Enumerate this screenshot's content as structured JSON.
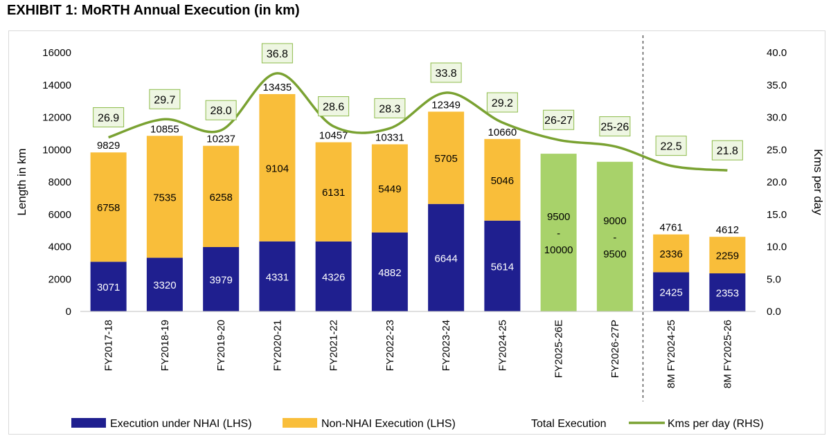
{
  "title": "EXHIBIT 1: MoRTH Annual Execution (in km)",
  "chart_data": {
    "type": "bar",
    "subtype": "stacked bar with line on secondary axis",
    "categories": [
      "FY2017-18",
      "FY2018-19",
      "FY2019-20",
      "FY2020-21",
      "FY2021-22",
      "FY2022-23",
      "FY2023-24",
      "FY2024-25",
      "FY2025-26E",
      "FY2026-27P",
      "8M FY2024-25",
      "8M FY2025-26"
    ],
    "series": [
      {
        "name": "Execution under NHAI (LHS)",
        "color": "#1f1f8f",
        "values": [
          3071,
          3320,
          3979,
          4331,
          4326,
          4882,
          6644,
          5614,
          null,
          null,
          2425,
          2353
        ],
        "labels": [
          "3071",
          "3320",
          "3979",
          "4331",
          "4326",
          "4882",
          "6644",
          "5614",
          "",
          "",
          "2425",
          "2353"
        ]
      },
      {
        "name": "Non-NHAI Execution (LHS)",
        "color": "#f9be3a",
        "values": [
          6758,
          7535,
          6258,
          9104,
          6131,
          5449,
          5705,
          5046,
          null,
          null,
          2336,
          2259
        ],
        "labels": [
          "6758",
          "7535",
          "6258",
          "9104",
          "6131",
          "5449",
          "5705",
          "5046",
          "",
          "",
          "2336",
          "2259"
        ]
      },
      {
        "name": "Total Execution",
        "color": "#a8d26a",
        "values": [
          9829,
          10855,
          10237,
          13435,
          10457,
          10331,
          12349,
          10660,
          9750,
          9250,
          4761,
          4612
        ],
        "labels": [
          "9829",
          "10855",
          "10237",
          "13435",
          "10457",
          "10331",
          "12349",
          "10660",
          "",
          "",
          "4761",
          "4612"
        ],
        "range_labels": [
          "",
          "",
          "",
          "",
          "",
          "",
          "",
          "",
          [
            "9500",
            "-",
            "10000"
          ],
          [
            "9000",
            "-",
            "9500"
          ],
          "",
          ""
        ]
      },
      {
        "name": "Kms per day (RHS)",
        "color": "#7aa232",
        "axis": "right",
        "values": [
          26.9,
          29.7,
          28.0,
          36.8,
          28.6,
          28.3,
          33.8,
          29.2,
          26.5,
          25.5,
          22.5,
          21.8
        ],
        "labels": [
          "26.9",
          "29.7",
          "28.0",
          "36.8",
          "28.6",
          "28.3",
          "33.8",
          "29.2",
          "26-27",
          "25-26",
          "22.5",
          "21.8"
        ]
      }
    ],
    "ylabel": "Length in km",
    "ylabel_right": "Kms per day",
    "ylim": [
      0,
      16000
    ],
    "ylim_right": [
      0,
      40
    ],
    "yticks": [
      "0",
      "2000",
      "4000",
      "6000",
      "8000",
      "10000",
      "12000",
      "14000",
      "16000"
    ],
    "yticks_right": [
      "0.0",
      "5.0",
      "10.0",
      "15.0",
      "20.0",
      "25.0",
      "30.0",
      "35.0",
      "40.0"
    ],
    "grid": false,
    "legend": "bottom",
    "legend_entries": [
      "Execution under NHAI (LHS)",
      "Non-NHAI Execution (LHS)",
      "Total Execution",
      "Kms per day (RHS)"
    ]
  }
}
